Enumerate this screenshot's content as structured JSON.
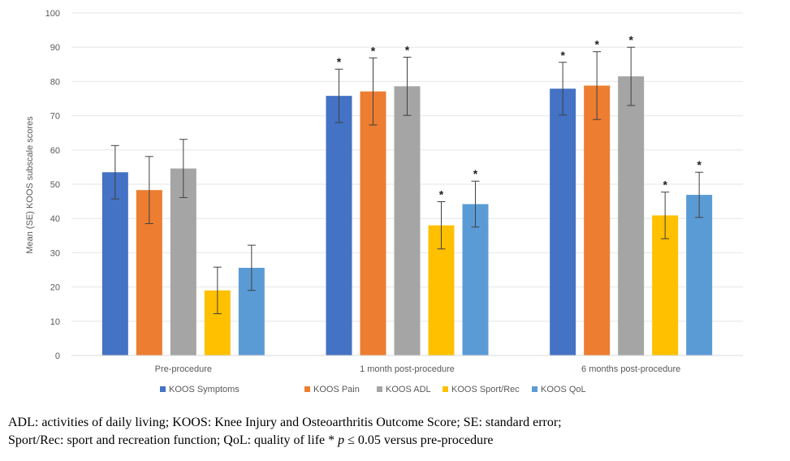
{
  "chart_data": {
    "type": "bar",
    "title": "",
    "xlabel": "",
    "ylabel": "Mean (SE) KOOS subscale scores",
    "ylim": [
      0,
      100
    ],
    "yticks": [
      0,
      10,
      20,
      30,
      40,
      50,
      60,
      70,
      80,
      90,
      100
    ],
    "categories": [
      "Pre-procedure",
      "1 month post-procedure",
      "6 months post-procedure"
    ],
    "legend_position": "bottom",
    "series": [
      {
        "name": "KOOS Symptoms",
        "color": "#4472C4",
        "values": [
          53.5,
          75.8,
          77.9
        ],
        "se": [
          7.8,
          7.8,
          7.7
        ],
        "significant": [
          false,
          true,
          true
        ]
      },
      {
        "name": "KOOS Pain",
        "color": "#ED7D31",
        "values": [
          48.3,
          77.1,
          78.8
        ],
        "se": [
          9.8,
          9.8,
          9.9
        ],
        "significant": [
          false,
          true,
          true
        ]
      },
      {
        "name": "KOOS ADL",
        "color": "#A5A5A5",
        "values": [
          54.6,
          78.6,
          81.5
        ],
        "se": [
          8.5,
          8.5,
          8.5
        ],
        "significant": [
          false,
          true,
          true
        ]
      },
      {
        "name": "KOOS Sport/Rec",
        "color": "#FFC000",
        "values": [
          19.0,
          38.0,
          40.9
        ],
        "se": [
          6.8,
          6.9,
          6.8
        ],
        "significant": [
          false,
          true,
          true
        ]
      },
      {
        "name": "KOOS QoL",
        "color": "#5B9BD5",
        "values": [
          25.6,
          44.2,
          46.9
        ],
        "se": [
          6.6,
          6.7,
          6.6
        ],
        "significant": [
          false,
          true,
          true
        ]
      }
    ],
    "significance_marker": "*"
  },
  "caption": {
    "line1": "ADL: activities of daily living; KOOS: Knee Injury and Osteoarthritis Outcome Score; SE: standard error;",
    "line2_a": "Sport/Rec: sport and recreation function; QoL: quality of life * ",
    "line2_p": "p",
    "line2_b": " ≤ 0.05 versus pre-procedure"
  }
}
